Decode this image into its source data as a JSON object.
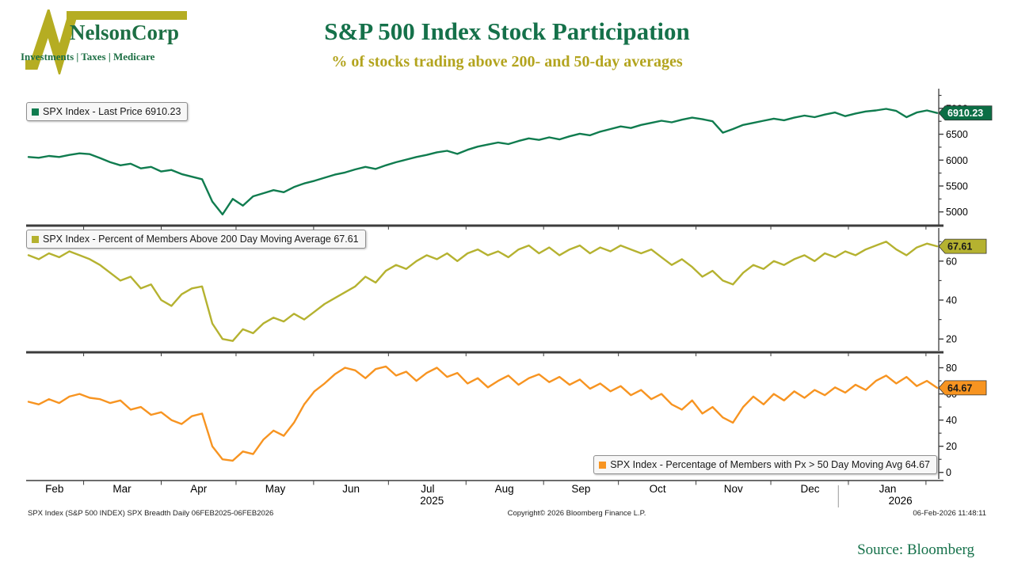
{
  "header": {
    "logo": {
      "name": "NelsonCorp",
      "tagline": "Investments | Taxes | Medicare"
    },
    "title": "S&P 500 Index Stock Participation",
    "subtitle": "% of stocks trading above 200- and 50-day averages"
  },
  "chart_data": [
    {
      "id": "spx-last-price",
      "type": "line",
      "legend": "SPX Index - Last Price 6910.23",
      "last_label": "6910.23",
      "last_value": 6910.23,
      "color": "#107c4f",
      "tag_bg": "#0c6e45",
      "tag_text": "#ffffff",
      "yticks": [
        5000,
        5500,
        6000,
        6500,
        7000
      ],
      "ylim": [
        4750,
        7380
      ],
      "values": [
        6060,
        6045,
        6080,
        6060,
        6100,
        6130,
        6115,
        6040,
        5960,
        5900,
        5930,
        5840,
        5870,
        5780,
        5810,
        5730,
        5680,
        5630,
        5200,
        4950,
        5250,
        5120,
        5300,
        5360,
        5420,
        5380,
        5480,
        5550,
        5600,
        5660,
        5720,
        5760,
        5820,
        5870,
        5830,
        5900,
        5960,
        6010,
        6060,
        6100,
        6150,
        6180,
        6120,
        6200,
        6260,
        6300,
        6340,
        6310,
        6370,
        6420,
        6390,
        6440,
        6400,
        6460,
        6510,
        6480,
        6550,
        6600,
        6650,
        6620,
        6680,
        6720,
        6760,
        6730,
        6780,
        6820,
        6790,
        6750,
        6530,
        6600,
        6680,
        6720,
        6760,
        6800,
        6770,
        6820,
        6860,
        6830,
        6880,
        6920,
        6850,
        6900,
        6940,
        6960,
        6990,
        6950,
        6830,
        6920,
        6960,
        6910.23
      ]
    },
    {
      "id": "pct-above-200dma",
      "type": "line",
      "legend": "SPX Index - Percent of Members Above 200 Day Moving Average 67.61",
      "last_label": "67.61",
      "last_value": 67.61,
      "color": "#b5b230",
      "tag_bg": "#b5b230",
      "tag_text": "#1a1a1a",
      "yticks": [
        20,
        40,
        60
      ],
      "ylim": [
        14,
        77
      ],
      "values": [
        63,
        61,
        64,
        62,
        65,
        63,
        61,
        58,
        54,
        50,
        52,
        46,
        48,
        40,
        37,
        43,
        46,
        47,
        28,
        20,
        19,
        25,
        23,
        28,
        31,
        29,
        33,
        30,
        34,
        38,
        41,
        44,
        47,
        52,
        49,
        55,
        58,
        56,
        60,
        63,
        61,
        64,
        60,
        64,
        66,
        63,
        65,
        62,
        66,
        68,
        64,
        67,
        63,
        66,
        68,
        64,
        67,
        65,
        68,
        66,
        64,
        66,
        62,
        58,
        61,
        57,
        52,
        55,
        50,
        48,
        54,
        58,
        56,
        60,
        58,
        61,
        63,
        60,
        64,
        62,
        65,
        63,
        66,
        68,
        70,
        66,
        63,
        67,
        69,
        67.61
      ]
    },
    {
      "id": "pct-above-50dma",
      "type": "line",
      "legend": "SPX Index - Percentage of Members with Px > 50 Day Moving Avg 64.67",
      "last_label": "64.67",
      "last_value": 64.67,
      "color": "#f79421",
      "tag_bg": "#f79421",
      "tag_text": "#1a1a1a",
      "yticks": [
        0,
        20,
        40,
        60,
        80
      ],
      "ylim": [
        -5,
        90
      ],
      "values": [
        54,
        52,
        56,
        53,
        58,
        60,
        57,
        56,
        53,
        55,
        48,
        50,
        44,
        46,
        40,
        37,
        43,
        45,
        20,
        10,
        9,
        16,
        14,
        25,
        32,
        28,
        38,
        52,
        62,
        68,
        75,
        80,
        78,
        72,
        79,
        81,
        74,
        77,
        70,
        76,
        80,
        73,
        76,
        68,
        72,
        65,
        70,
        74,
        67,
        72,
        75,
        69,
        73,
        67,
        71,
        64,
        68,
        62,
        66,
        59,
        63,
        56,
        60,
        52,
        48,
        55,
        45,
        50,
        42,
        38,
        50,
        58,
        52,
        60,
        55,
        62,
        57,
        63,
        59,
        65,
        61,
        67,
        63,
        70,
        74,
        68,
        73,
        66,
        70,
        64.67
      ]
    }
  ],
  "x_axis": {
    "months": [
      "Feb",
      "Mar",
      "Apr",
      "May",
      "Jun",
      "Jul",
      "Aug",
      "Sep",
      "Oct",
      "Nov",
      "Dec",
      "Jan"
    ],
    "years": [
      "2025",
      "2026"
    ]
  },
  "footer": {
    "left": "SPX Index (S&P 500 INDEX) SPX Breadth Daily 06FEB2025-06FEB2026",
    "center": "Copyright© 2026 Bloomberg Finance L.P.",
    "right": "06-Feb-2026 11:48:11",
    "source": "Source: Bloomberg"
  }
}
